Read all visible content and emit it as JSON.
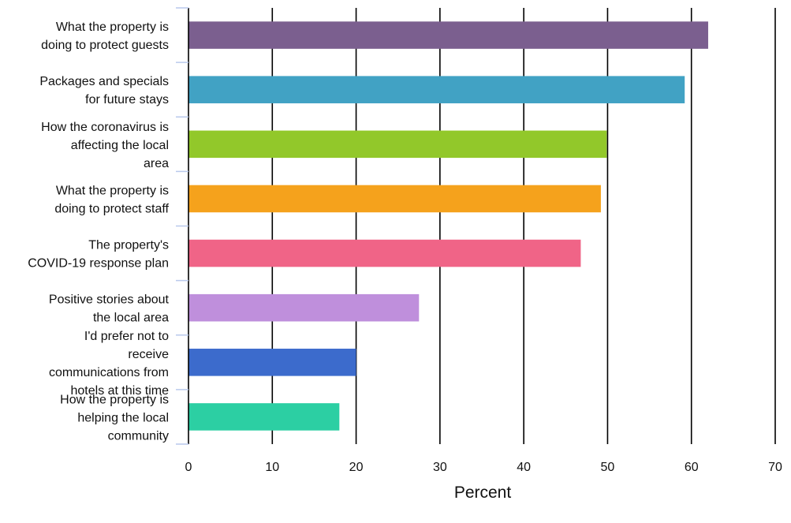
{
  "chart_data": {
    "type": "bar",
    "orientation": "horizontal",
    "title": "",
    "xlabel": "Percent",
    "ylabel": "",
    "xlim": [
      0,
      70
    ],
    "xticks": [
      0,
      10,
      20,
      30,
      40,
      50,
      60,
      70
    ],
    "grid": "vertical",
    "legend": "none",
    "categories": [
      "What the property is doing to protect guests",
      "Packages and specials for future stays",
      "How the coronavirus is affecting the local area",
      "What the property is doing to protect staff",
      "The property's COVID-19 response plan",
      "Positive stories about the local area",
      "I'd prefer not to receive communications from hotels at this time",
      "How the property is helping the local community"
    ],
    "category_lines": [
      [
        "What the property is",
        "doing to protect guests"
      ],
      [
        "Packages and specials",
        "for future stays"
      ],
      [
        "How the coronavirus is",
        "affecting the local",
        "area"
      ],
      [
        "What the property is",
        "doing to protect staff"
      ],
      [
        "The property's",
        "COVID-19 response plan"
      ],
      [
        "Positive stories about",
        "the local area"
      ],
      [
        "I'd prefer not to",
        "receive",
        "communications from",
        "hotels at this time"
      ],
      [
        "How the property is",
        "helping the local",
        "community"
      ]
    ],
    "values": [
      62,
      59.2,
      49.9,
      49.2,
      46.8,
      27.5,
      20,
      18
    ],
    "colors": [
      "#7b5f8f",
      "#41a2c4",
      "#92c82a",
      "#f5a21c",
      "#f06487",
      "#bf8fdc",
      "#3c6bcc",
      "#2ccfa3"
    ]
  }
}
